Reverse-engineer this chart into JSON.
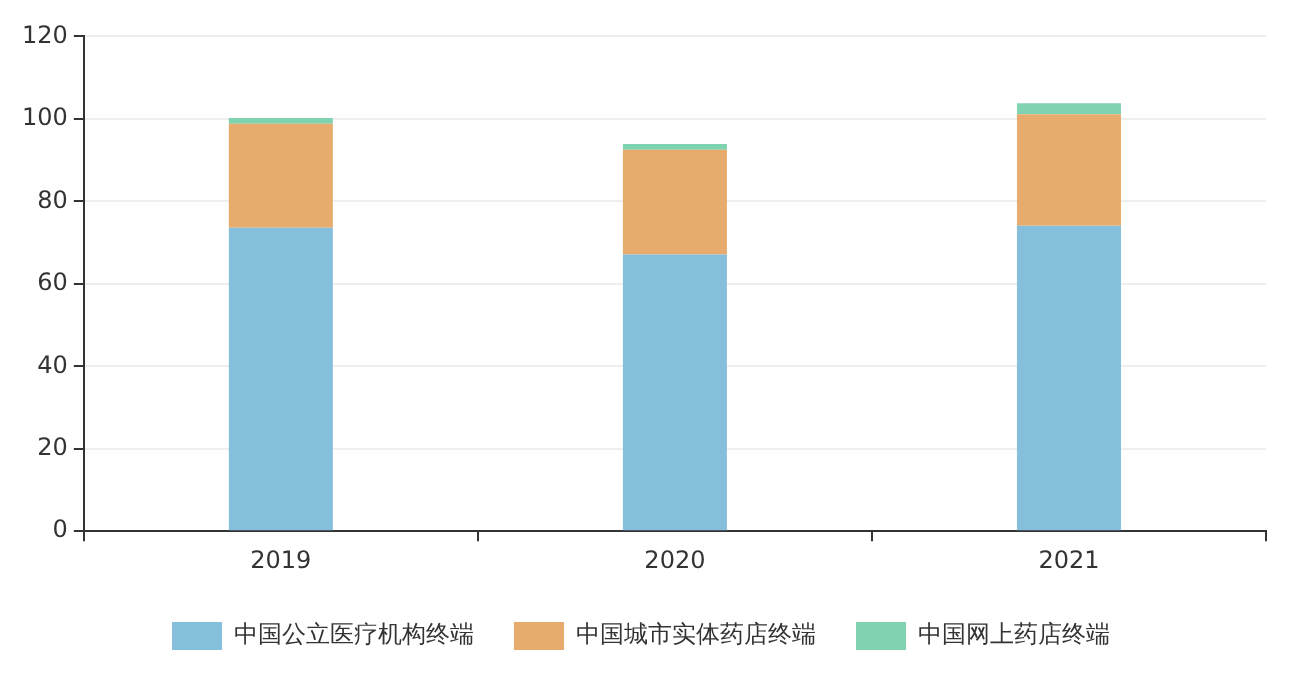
{
  "chart_data": {
    "type": "bar",
    "stacked": true,
    "categories": [
      "2019",
      "2020",
      "2021"
    ],
    "series": [
      {
        "name": "中国公立医疗机构终端",
        "color": "#86bfdc",
        "values": [
          73.6,
          67.1,
          74.1
        ]
      },
      {
        "name": "中国城市实体药店终端",
        "color": "#e8ab6e",
        "values": [
          25.2,
          25.4,
          27.0
        ]
      },
      {
        "name": "中国网上药店终端",
        "color": "#7fd3b0",
        "values": [
          1.4,
          1.4,
          2.7
        ]
      }
    ],
    "ylim": [
      0,
      120
    ],
    "yticks": [
      0,
      20,
      40,
      60,
      80,
      100,
      120
    ],
    "grid": "y",
    "legend": "bottom"
  }
}
